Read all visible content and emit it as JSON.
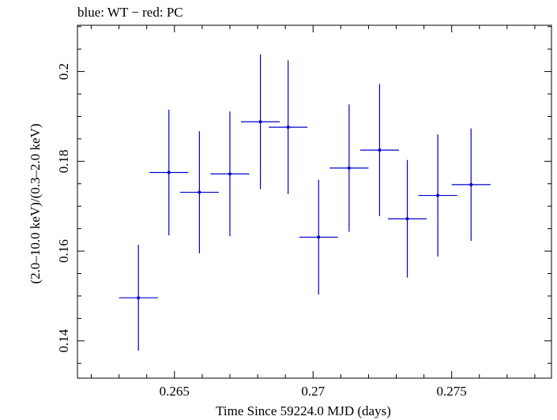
{
  "chart_data": {
    "type": "scatter",
    "title": "blue: WT − red: PC",
    "xlabel": "Time Since 59224.0 MJD (days)",
    "ylabel": "(2.0–10.0 keV)/(0.3–2.0 keV)",
    "xlim": [
      0.2615,
      0.2786
    ],
    "ylim": [
      0.1317,
      0.2103
    ],
    "xticks": [
      0.265,
      0.27,
      0.275
    ],
    "xtick_labels": [
      "0.265",
      "0.27",
      "0.275"
    ],
    "yticks": [
      0.14,
      0.16,
      0.18,
      0.2
    ],
    "ytick_labels": [
      "0.14",
      "0.16",
      "0.18",
      "0.2"
    ],
    "grid": false,
    "series": [
      {
        "color": "#0000cc",
        "points": [
          {
            "x": 0.2637,
            "y": 0.1496,
            "xerr": 0.0007,
            "yerr": 0.0118
          },
          {
            "x": 0.2648,
            "y": 0.1775,
            "xerr": 0.0007,
            "yerr": 0.014
          },
          {
            "x": 0.2659,
            "y": 0.1731,
            "xerr": 0.0007,
            "yerr": 0.0136
          },
          {
            "x": 0.267,
            "y": 0.1772,
            "xerr": 0.0007,
            "yerr": 0.0139
          },
          {
            "x": 0.2681,
            "y": 0.1888,
            "xerr": 0.0007,
            "yerr": 0.015
          },
          {
            "x": 0.2691,
            "y": 0.1876,
            "xerr": 0.0007,
            "yerr": 0.0149
          },
          {
            "x": 0.2702,
            "y": 0.1631,
            "xerr": 0.0007,
            "yerr": 0.0128
          },
          {
            "x": 0.2713,
            "y": 0.1785,
            "xerr": 0.0007,
            "yerr": 0.0142
          },
          {
            "x": 0.2724,
            "y": 0.1825,
            "xerr": 0.0007,
            "yerr": 0.0147
          },
          {
            "x": 0.2734,
            "y": 0.1672,
            "xerr": 0.0007,
            "yerr": 0.0131
          },
          {
            "x": 0.2745,
            "y": 0.1724,
            "xerr": 0.0007,
            "yerr": 0.0136
          },
          {
            "x": 0.2757,
            "y": 0.1748,
            "xerr": 0.0007,
            "yerr": 0.0125
          }
        ]
      }
    ]
  }
}
